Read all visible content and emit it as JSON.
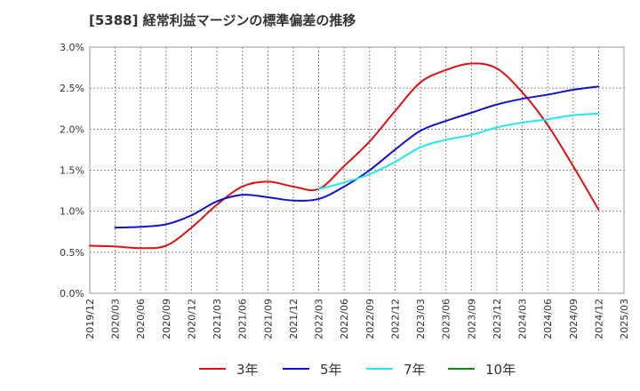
{
  "title": "[5388]  経常利益マージンの標準偏差の推移",
  "chart_data": {
    "type": "line",
    "title": "[5388]  経常利益マージンの標準偏差の推移",
    "xlabel": "",
    "ylabel": "",
    "x_ticks": [
      "2019/12",
      "2020/03",
      "2020/06",
      "2020/09",
      "2020/12",
      "2021/03",
      "2021/06",
      "2021/09",
      "2021/12",
      "2022/03",
      "2022/06",
      "2022/09",
      "2022/12",
      "2023/03",
      "2023/06",
      "2023/09",
      "2023/12",
      "2024/03",
      "2024/06",
      "2024/09",
      "2024/12",
      "2025/03"
    ],
    "y_ticks": [
      "0.0%",
      "0.5%",
      "1.0%",
      "1.5%",
      "2.0%",
      "2.5%",
      "3.0%"
    ],
    "ylim": [
      0,
      3.0
    ],
    "grid": true,
    "legend_position": "bottom",
    "series": [
      {
        "name": "3年",
        "color": "#dd1111",
        "x": [
          "2019/12",
          "2020/03",
          "2020/06",
          "2020/09",
          "2020/12",
          "2021/03",
          "2021/06",
          "2021/09",
          "2021/12",
          "2022/03",
          "2022/06",
          "2022/09",
          "2022/12",
          "2023/03",
          "2023/06",
          "2023/09",
          "2023/12",
          "2024/03",
          "2024/06",
          "2024/09",
          "2024/12"
        ],
        "values": [
          0.58,
          0.57,
          0.55,
          0.58,
          0.8,
          1.08,
          1.3,
          1.36,
          1.3,
          1.27,
          1.55,
          1.85,
          2.22,
          2.57,
          2.72,
          2.8,
          2.74,
          2.45,
          2.05,
          1.55,
          1.02
        ]
      },
      {
        "name": "5年",
        "color": "#1111cc",
        "x": [
          "2020/03",
          "2020/06",
          "2020/09",
          "2020/12",
          "2021/03",
          "2021/06",
          "2021/09",
          "2021/12",
          "2022/03",
          "2022/06",
          "2022/09",
          "2022/12",
          "2023/03",
          "2023/06",
          "2023/09",
          "2023/12",
          "2024/03",
          "2024/06",
          "2024/09",
          "2024/12"
        ],
        "values": [
          0.8,
          0.81,
          0.84,
          0.95,
          1.12,
          1.2,
          1.17,
          1.13,
          1.15,
          1.3,
          1.5,
          1.75,
          1.98,
          2.1,
          2.2,
          2.3,
          2.37,
          2.42,
          2.48,
          2.52
        ]
      },
      {
        "name": "7年",
        "color": "#22e6f2",
        "x": [
          "2022/03",
          "2022/06",
          "2022/09",
          "2022/12",
          "2023/03",
          "2023/06",
          "2023/09",
          "2023/12",
          "2024/03",
          "2024/06",
          "2024/09",
          "2024/12"
        ],
        "values": [
          1.27,
          1.35,
          1.45,
          1.6,
          1.78,
          1.87,
          1.93,
          2.02,
          2.08,
          2.12,
          2.17,
          2.19
        ]
      },
      {
        "name": "10年",
        "color": "#118811",
        "x": [],
        "values": []
      }
    ]
  }
}
